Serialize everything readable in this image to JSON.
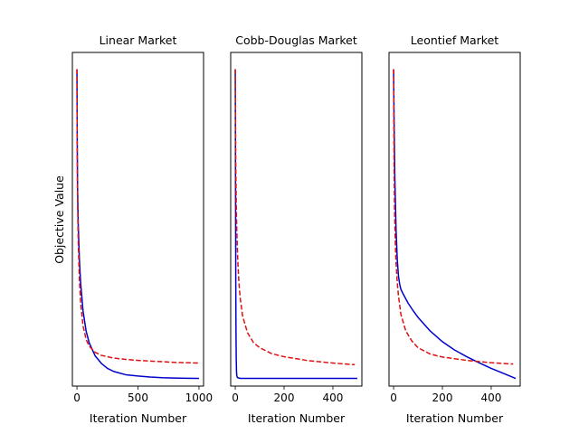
{
  "figure": {
    "ylabel": "Objective Value"
  },
  "chart_data": [
    {
      "type": "line",
      "title": "Linear Market",
      "xlabel": "Iteration Number",
      "ylabel": "Objective Value",
      "xlim": [
        -37.5,
        1037.5
      ],
      "ylim": [
        0,
        1
      ],
      "xticks": [
        0,
        500,
        1000
      ],
      "xtick_labels": [
        "0",
        "500",
        "1000"
      ],
      "yticks_visible": false,
      "grid": false,
      "series": [
        {
          "style": "solid",
          "color": "#0000cc",
          "x": [
            0,
            2,
            5,
            10,
            20,
            30,
            50,
            75,
            100,
            150,
            200,
            250,
            300,
            400,
            500,
            600,
            700,
            800,
            900,
            1000
          ],
          "y": [
            0.95,
            0.75,
            0.6,
            0.49,
            0.38,
            0.31,
            0.225,
            0.165,
            0.13,
            0.09,
            0.068,
            0.053,
            0.044,
            0.034,
            0.03,
            0.027,
            0.025,
            0.024,
            0.0235,
            0.023
          ]
        },
        {
          "style": "dashed",
          "color": "#dd1111",
          "x": [
            0,
            2,
            5,
            10,
            20,
            30,
            50,
            75,
            100,
            150,
            200,
            300,
            400,
            500,
            600,
            700,
            800,
            900,
            1000
          ],
          "y": [
            0.95,
            0.72,
            0.56,
            0.44,
            0.32,
            0.25,
            0.18,
            0.14,
            0.12,
            0.101,
            0.092,
            0.084,
            0.08,
            0.077,
            0.075,
            0.073,
            0.071,
            0.07,
            0.069
          ]
        }
      ]
    },
    {
      "type": "line",
      "title": "Cobb-Douglas Market",
      "xlabel": "Iteration Number",
      "ylim": [
        0,
        1
      ],
      "xlim": [
        -18.75,
        518.75
      ],
      "xticks": [
        0,
        200,
        400
      ],
      "xtick_labels": [
        "0",
        "200",
        "400"
      ],
      "yticks_visible": false,
      "grid": false,
      "series": [
        {
          "style": "solid",
          "color": "#0000cc",
          "x": [
            0,
            0.5,
            1,
            2,
            3,
            4,
            5,
            6,
            8,
            10,
            15,
            20,
            50,
            100,
            200,
            300,
            400,
            500
          ],
          "y": [
            0.95,
            0.82,
            0.62,
            0.33,
            0.16,
            0.08,
            0.045,
            0.032,
            0.027,
            0.025,
            0.024,
            0.023,
            0.023,
            0.023,
            0.023,
            0.023,
            0.023,
            0.023
          ]
        },
        {
          "style": "dashed",
          "color": "#dd1111",
          "x": [
            0,
            1,
            2,
            4,
            6,
            10,
            15,
            20,
            30,
            50,
            75,
            100,
            150,
            200,
            300,
            400,
            490
          ],
          "y": [
            0.95,
            0.78,
            0.67,
            0.55,
            0.47,
            0.38,
            0.31,
            0.265,
            0.21,
            0.16,
            0.13,
            0.115,
            0.097,
            0.088,
            0.076,
            0.069,
            0.064
          ]
        }
      ]
    },
    {
      "type": "line",
      "title": "Leontief Market",
      "xlabel": "Iteration Number",
      "ylim": [
        0,
        1
      ],
      "xlim": [
        -18.75,
        518.75
      ],
      "xticks": [
        0,
        200,
        400
      ],
      "xtick_labels": [
        "0",
        "200",
        "400"
      ],
      "yticks_visible": false,
      "grid": false,
      "series": [
        {
          "style": "solid",
          "color": "#0000cc",
          "x": [
            0,
            2,
            5,
            10,
            15,
            20,
            25,
            30,
            40,
            60,
            80,
            100,
            150,
            200,
            250,
            300,
            350,
            400,
            450,
            500
          ],
          "y": [
            0.95,
            0.8,
            0.63,
            0.47,
            0.38,
            0.33,
            0.305,
            0.29,
            0.275,
            0.248,
            0.226,
            0.206,
            0.165,
            0.133,
            0.108,
            0.088,
            0.07,
            0.053,
            0.038,
            0.023
          ]
        },
        {
          "style": "dashed",
          "color": "#dd1111",
          "x": [
            0,
            1,
            2,
            4,
            7,
            10,
            15,
            20,
            30,
            50,
            75,
            100,
            150,
            200,
            300,
            400,
            490
          ],
          "y": [
            0.95,
            0.79,
            0.67,
            0.53,
            0.43,
            0.37,
            0.31,
            0.27,
            0.215,
            0.165,
            0.135,
            0.115,
            0.096,
            0.087,
            0.077,
            0.07,
            0.066
          ]
        }
      ]
    }
  ]
}
